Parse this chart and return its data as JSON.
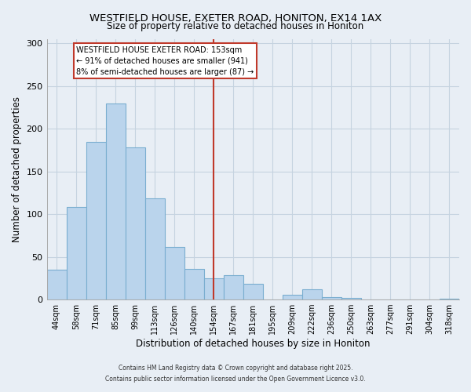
{
  "title": "WESTFIELD HOUSE, EXETER ROAD, HONITON, EX14 1AX",
  "subtitle": "Size of property relative to detached houses in Honiton",
  "xlabel": "Distribution of detached houses by size in Honiton",
  "ylabel": "Number of detached properties",
  "bar_labels": [
    "44sqm",
    "58sqm",
    "71sqm",
    "85sqm",
    "99sqm",
    "113sqm",
    "126sqm",
    "140sqm",
    "154sqm",
    "167sqm",
    "181sqm",
    "195sqm",
    "209sqm",
    "222sqm",
    "236sqm",
    "250sqm",
    "263sqm",
    "277sqm",
    "291sqm",
    "304sqm",
    "318sqm"
  ],
  "bar_values": [
    35,
    108,
    185,
    230,
    178,
    119,
    62,
    36,
    25,
    29,
    18,
    0,
    6,
    12,
    3,
    2,
    0,
    0,
    0,
    0,
    1
  ],
  "bar_color": "#bad4ec",
  "bar_edge_color": "#7aaed0",
  "vline_x": 8,
  "vline_color": "#c0392b",
  "ylim": [
    0,
    305
  ],
  "yticks": [
    0,
    50,
    100,
    150,
    200,
    250,
    300
  ],
  "annotation_title": "WESTFIELD HOUSE EXETER ROAD: 153sqm",
  "annotation_line1": "← 91% of detached houses are smaller (941)",
  "annotation_line2": "8% of semi-detached houses are larger (87) →",
  "footer1": "Contains HM Land Registry data © Crown copyright and database right 2025.",
  "footer2": "Contains public sector information licensed under the Open Government Licence v3.0.",
  "bg_color": "#e8eef5",
  "plot_bg_color": "#e8eef5",
  "grid_color": "#c5d3e0"
}
